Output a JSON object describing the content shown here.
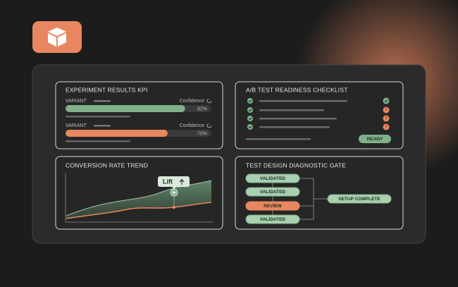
{
  "kpi": {
    "title": "EXPERIMENT RESULTS KPI",
    "rows": [
      {
        "label": "VARIANT",
        "metric": "Confidence",
        "value": 82,
        "value_label": "82%",
        "color": "#7fb08a"
      },
      {
        "label": "VARIANT",
        "metric": "Confidence",
        "value": 70,
        "value_label": "70%",
        "color": "#e8875f"
      }
    ]
  },
  "checklist": {
    "title": "A/B TEST READINESS CHECKLIST",
    "pending": "?",
    "button": "READY"
  },
  "trend": {
    "title": "CONVERSION RATE TREND",
    "tooltip": "Lift"
  },
  "gate": {
    "title": "TEST DESIGN DIAGNOSTIC GATE",
    "steps": [
      "VALIDATED",
      "VALIDATED",
      "REVIEW",
      "VALIDATED"
    ],
    "result": "SETUP COMPLETE"
  }
}
